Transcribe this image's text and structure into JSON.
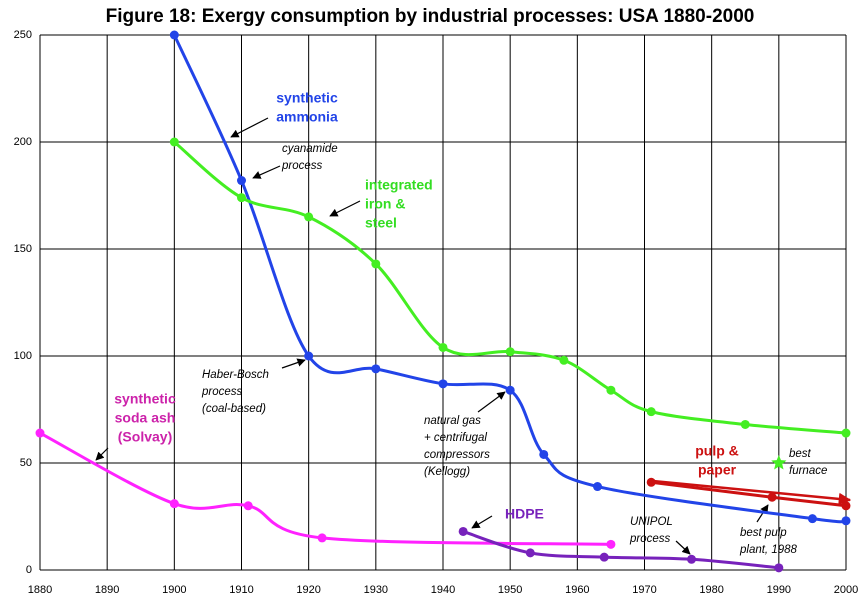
{
  "chart_data": {
    "type": "line",
    "title": "Figure 18: Exergy consumption by industrial processes: USA 1880-2000",
    "xlim": [
      1880,
      2000
    ],
    "xticks": [
      1880,
      1890,
      1900,
      1910,
      1920,
      1930,
      1940,
      1950,
      1960,
      1970,
      1980,
      1990,
      2000
    ],
    "ylim": [
      0,
      250
    ],
    "yticks": [
      0,
      50,
      100,
      150,
      200,
      250
    ],
    "grid": true,
    "series": [
      {
        "color": "#2244e8",
        "marker": "circle",
        "x": [
          1900,
          1910,
          1920,
          1930,
          1940,
          1950,
          1955,
          1963,
          1995,
          2000
        ],
        "values": [
          250,
          182,
          100,
          94,
          87,
          84,
          54,
          39,
          24,
          23
        ]
      },
      {
        "color": "#44ee22",
        "marker": "circle",
        "x": [
          1900,
          1910,
          1920,
          1930,
          1940,
          1950,
          1958,
          1965,
          1971,
          1985,
          2000
        ],
        "values": [
          200,
          174,
          165,
          143,
          104,
          102,
          98,
          84,
          74,
          68,
          64
        ]
      },
      {
        "color": "#ff22ff",
        "marker": "circle",
        "x": [
          1880,
          1900,
          1911,
          1922,
          1965
        ],
        "values": [
          64,
          31,
          30,
          15,
          12
        ]
      },
      {
        "color": "#7722bb",
        "marker": "circle",
        "x": [
          1943,
          1953,
          1964,
          1977,
          1990
        ],
        "values": [
          18,
          8,
          6,
          5,
          1
        ]
      },
      {
        "color": "#cc1111",
        "marker": "circle",
        "x": [
          1971,
          1989,
          2000
        ],
        "values": [
          41,
          34,
          30
        ]
      },
      {
        "color": "#44ee22",
        "marker": "star",
        "x": [
          1990
        ],
        "values": [
          50
        ]
      }
    ],
    "annotations": [
      {
        "lines": [
          "synthetic",
          "ammonia"
        ],
        "color": "#2244e8",
        "style": "bold"
      },
      {
        "lines": [
          "cyanamide",
          "process"
        ],
        "style": "italic"
      },
      {
        "lines": [
          "integrated",
          "iron &",
          "steel"
        ],
        "color": "#33dd22",
        "style": "bold"
      },
      {
        "lines": [
          "Haber-Bosch",
          "process",
          "(coal-based)"
        ],
        "style": "italic"
      },
      {
        "lines": [
          "natural gas",
          "+ centrifugal",
          "compressors",
          "(Kellogg)"
        ],
        "style": "italic"
      },
      {
        "lines": [
          "synthetic",
          "soda ash",
          "(Solvay)"
        ],
        "color": "#cc22aa",
        "style": "bold"
      },
      {
        "lines": [
          "HDPE"
        ],
        "color": "#7722bb",
        "style": "bold"
      },
      {
        "lines": [
          "UNIPOL",
          "process"
        ],
        "style": "italic"
      },
      {
        "lines": [
          "pulp &",
          "paper"
        ],
        "color": "#cc1111",
        "style": "bold"
      },
      {
        "lines": [
          "best",
          "furnace"
        ],
        "style": "italic"
      },
      {
        "lines": [
          "best pulp",
          "plant, 1988"
        ],
        "style": "italic"
      }
    ]
  }
}
